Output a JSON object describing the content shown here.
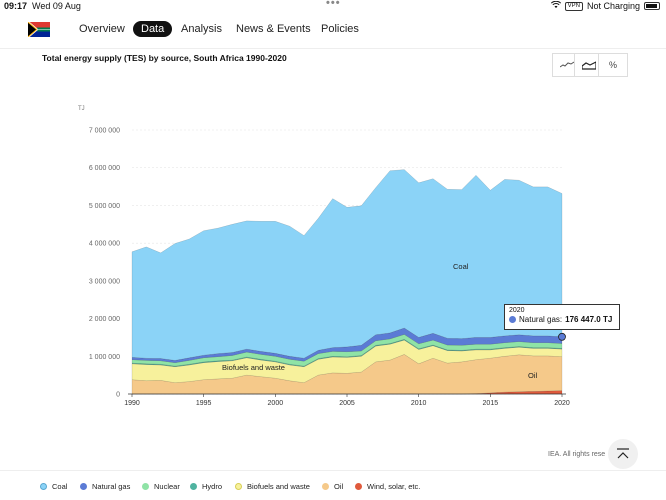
{
  "status": {
    "time": "09:17",
    "date": "Wed 09 Aug",
    "vpn": "VPN",
    "charging": "Not Charging"
  },
  "nav": {
    "items": [
      "Overview",
      "Data",
      "Analysis",
      "News & Events",
      "Policies"
    ],
    "active": "Data"
  },
  "toggles": {
    "percent": "%"
  },
  "footer_note": "IEA. All rights rese",
  "tooltip": {
    "year": "2020",
    "label": "Natural gas:",
    "value": "176 447.0 TJ"
  },
  "colors": {
    "coal": "#8bd3f7",
    "natural_gas": "#5b7bd5",
    "nuclear": "#8fe3a6",
    "hydro": "#4fb3a0",
    "biofuels": "#f7f19c",
    "oil": "#f5c98a",
    "wind": "#e05a3c"
  },
  "chart_data": {
    "type": "area",
    "title": "Total energy supply (TES) by source, South Africa 1990-2020",
    "ylabel": "TJ",
    "ylim": [
      0,
      7000000
    ],
    "yticks": [
      "0",
      "1 000 000",
      "2 000 000",
      "3 000 000",
      "4 000 000",
      "5 000 000",
      "6 000 000",
      "7 000 000"
    ],
    "x": [
      1990,
      1991,
      1992,
      1993,
      1994,
      1995,
      1996,
      1997,
      1998,
      1999,
      2000,
      2001,
      2002,
      2003,
      2004,
      2005,
      2006,
      2007,
      2008,
      2009,
      2010,
      2011,
      2012,
      2013,
      2014,
      2015,
      2016,
      2017,
      2018,
      2019,
      2020
    ],
    "xticks": [
      1990,
      1995,
      2000,
      2005,
      2010,
      2015,
      2020
    ],
    "area_labels": {
      "coal": "Coal",
      "biofuels": "Biofuels and waste",
      "oil": "Oil"
    },
    "series": [
      {
        "name": "Wind, solar, etc.",
        "key": "wind",
        "values": [
          0,
          0,
          0,
          0,
          0,
          0,
          0,
          0,
          0,
          0,
          0,
          0,
          0,
          0,
          0,
          0,
          0,
          0,
          0,
          0,
          0,
          0,
          0,
          0,
          10000,
          30000,
          50000,
          60000,
          70000,
          80000,
          90000
        ]
      },
      {
        "name": "Oil",
        "key": "oil",
        "values": [
          380000,
          350000,
          360000,
          300000,
          330000,
          380000,
          400000,
          420000,
          500000,
          460000,
          420000,
          350000,
          300000,
          500000,
          560000,
          550000,
          580000,
          850000,
          900000,
          1050000,
          800000,
          950000,
          820000,
          850000,
          900000,
          920000,
          950000,
          980000,
          940000,
          930000,
          900000
        ]
      },
      {
        "name": "Biofuels and waste",
        "key": "biofuels",
        "values": [
          420000,
          430000,
          410000,
          420000,
          440000,
          450000,
          460000,
          460000,
          460000,
          440000,
          430000,
          420000,
          420000,
          420000,
          420000,
          420000,
          420000,
          420000,
          420000,
          380000,
          380000,
          330000,
          330000,
          290000,
          260000,
          220000,
          210000,
          200000,
          200000,
          200000,
          200000
        ]
      },
      {
        "name": "Hydro",
        "key": "hydro",
        "values": [
          20000,
          20000,
          20000,
          20000,
          20000,
          20000,
          20000,
          20000,
          20000,
          20000,
          20000,
          20000,
          20000,
          20000,
          20000,
          20000,
          20000,
          20000,
          20000,
          20000,
          20000,
          20000,
          20000,
          20000,
          20000,
          20000,
          20000,
          20000,
          20000,
          20000,
          20000
        ]
      },
      {
        "name": "Nuclear",
        "key": "nuclear",
        "values": [
          90000,
          90000,
          90000,
          90000,
          100000,
          110000,
          110000,
          120000,
          130000,
          130000,
          130000,
          130000,
          130000,
          130000,
          130000,
          130000,
          120000,
          120000,
          120000,
          130000,
          130000,
          130000,
          130000,
          130000,
          130000,
          130000,
          130000,
          130000,
          130000,
          130000,
          130000
        ]
      },
      {
        "name": "Natural gas",
        "key": "natural_gas",
        "values": [
          60000,
          60000,
          60000,
          60000,
          70000,
          70000,
          80000,
          80000,
          80000,
          80000,
          80000,
          80000,
          80000,
          90000,
          100000,
          130000,
          150000,
          160000,
          160000,
          170000,
          170000,
          180000,
          180000,
          180000,
          180000,
          180000,
          180000,
          180000,
          180000,
          180000,
          176447
        ]
      },
      {
        "name": "Coal",
        "key": "coal",
        "values": [
          2800000,
          2950000,
          2800000,
          3100000,
          3150000,
          3300000,
          3330000,
          3400000,
          3400000,
          3450000,
          3500000,
          3450000,
          3250000,
          3500000,
          3950000,
          3700000,
          3700000,
          3900000,
          4300000,
          4200000,
          4100000,
          4100000,
          3950000,
          3950000,
          4300000,
          3900000,
          4150000,
          4100000,
          3950000,
          3950000,
          3800000
        ]
      }
    ],
    "legend": [
      "Coal",
      "Natural gas",
      "Nuclear",
      "Hydro",
      "Biofuels and waste",
      "Oil",
      "Wind, solar, etc."
    ]
  }
}
